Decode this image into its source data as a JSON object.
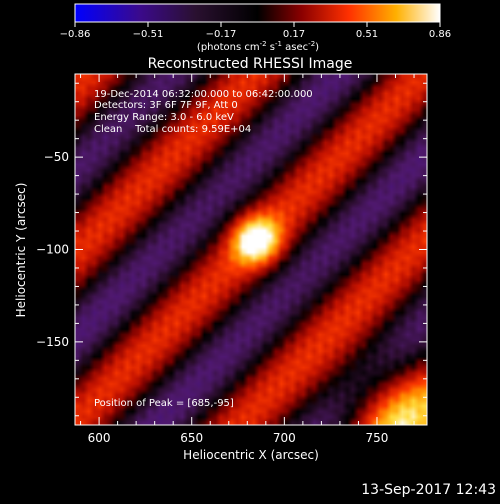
{
  "colorbar": {
    "ticks": [
      "-0.86",
      "-0.51",
      "-0.17",
      "0.17",
      "0.51",
      "0.86"
    ],
    "units_main": "(photons cm",
    "units_exp1": "-2",
    "units_mid": " s",
    "units_exp2": "-1",
    "units_tail": " asec",
    "units_exp3": "-2",
    "units_close": ")",
    "colors": [
      "#0000ff",
      "#3b0a8a",
      "#2a1030",
      "#000000",
      "#8a0000",
      "#ff3000",
      "#ffb000",
      "#ffffff"
    ]
  },
  "chart_data": {
    "type": "heatmap",
    "title": "Reconstructed RHESSI Image",
    "xlabel": "Heliocentric X (arcsec)",
    "ylabel": "Heliocentric Y (arcsec)",
    "xlim": [
      587,
      777
    ],
    "ylim": [
      -195,
      -5
    ],
    "x_ticks": [
      600,
      650,
      700,
      750
    ],
    "y_ticks": [
      -50,
      -100,
      -150
    ],
    "y_tick_labels": [
      "−50",
      "−100",
      "−150"
    ],
    "value_range": [
      -0.86,
      0.86
    ],
    "peak": [
      685,
      -95
    ],
    "annotations": [
      "19-Dec-2014 06:32:00.000 to 06:42:00.000",
      "Detectors: 3F 6F 7F 9F, Att 0",
      "Energy Range: 3.0 - 6.0 keV",
      "Clean    Total counts: 9.59E+04"
    ],
    "peak_label": "Position of Peak = [685,-95]"
  },
  "timestamp": "13-Sep-2017 12:43"
}
